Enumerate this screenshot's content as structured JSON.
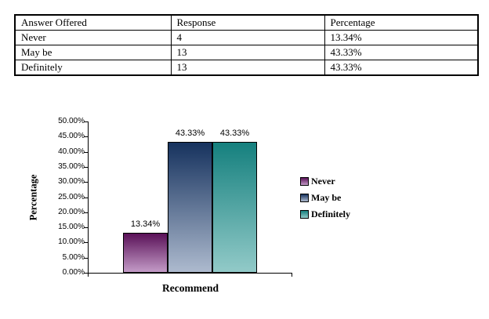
{
  "table": {
    "headers": [
      "Answer Offered",
      "Response",
      "Percentage"
    ],
    "rows": [
      [
        "Never",
        "4",
        "13.34%"
      ],
      [
        "May be",
        "13",
        "43.33%"
      ],
      [
        "Definitely",
        "13",
        "43.33%"
      ]
    ]
  },
  "chart_data": {
    "type": "bar",
    "title": "",
    "xlabel": "Recommend",
    "ylabel": "Percentage",
    "categories": [
      "Recommend"
    ],
    "series": [
      {
        "name": "Never",
        "values": [
          13.34
        ],
        "data_label": "13.34%",
        "color_top": "#5a1158",
        "color_bottom": "#c39bc7"
      },
      {
        "name": "May be",
        "values": [
          43.33
        ],
        "data_label": "43.33%",
        "color_top": "#16325e",
        "color_bottom": "#adbace"
      },
      {
        "name": "Definitely",
        "values": [
          43.33
        ],
        "data_label": "43.33%",
        "color_top": "#15807e",
        "color_bottom": "#92cac8"
      }
    ],
    "ylim": [
      0,
      50
    ],
    "ytick_step": 5,
    "ytick_labels": [
      "0.00%",
      "5.00%",
      "10.00%",
      "15.00%",
      "20.00%",
      "25.00%",
      "30.00%",
      "35.00%",
      "40.00%",
      "45.00%",
      "50.00%"
    ],
    "grid": false,
    "legend_position": "right",
    "axis_color": "#000000",
    "background": "#ffffff"
  }
}
